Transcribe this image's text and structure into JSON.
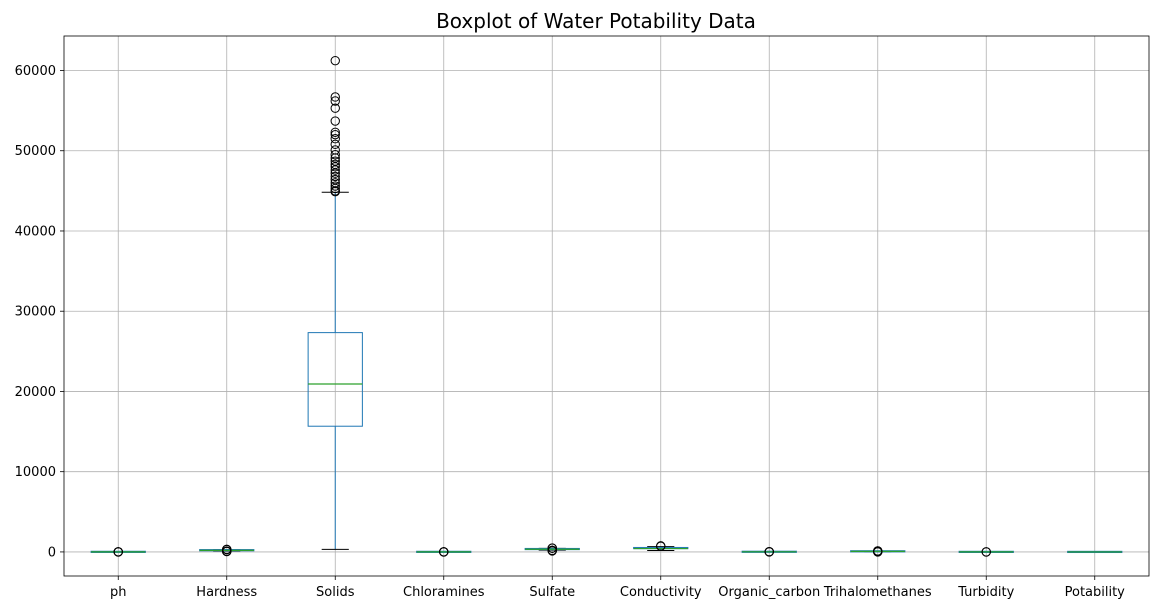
{
  "chart_data": {
    "type": "boxplot",
    "title": "Boxplot of Water Potability Data",
    "xlabel": "",
    "ylabel": "",
    "ylim": [
      -3000,
      64300
    ],
    "yticks": [
      0,
      10000,
      20000,
      30000,
      40000,
      50000,
      60000
    ],
    "ytick_labels": [
      "0",
      "10000",
      "20000",
      "30000",
      "40000",
      "50000",
      "60000"
    ],
    "grid": true,
    "colors": {
      "box": "#1f77b4",
      "median": "#2ca02c",
      "whisker_cap": "#000000",
      "grid": "#b0b0b0"
    },
    "categories": [
      "ph",
      "Hardness",
      "Solids",
      "Chloramines",
      "Sulfate",
      "Conductivity",
      "Organic_carbon",
      "Trihalomethanes",
      "Turbidity",
      "Potability"
    ],
    "boxes": [
      {
        "name": "ph",
        "whisker_low": 0,
        "q1": 6,
        "median": 7,
        "q3": 8,
        "whisker_high": 11,
        "outliers": [
          0,
          2,
          12,
          14
        ]
      },
      {
        "name": "Hardness",
        "whisker_low": 118,
        "q1": 177,
        "median": 197,
        "q3": 217,
        "whisker_high": 276,
        "outliers": [
          47,
          73,
          100,
          300,
          323
        ]
      },
      {
        "name": "Solids",
        "whisker_low": 321,
        "q1": 15667,
        "median": 20927,
        "q3": 27332,
        "whisker_high": 44832,
        "outliers": [
          44900,
          45000,
          45300,
          45600,
          46000,
          46400,
          46800,
          47200,
          47600,
          48000,
          48300,
          48700,
          49100,
          49500,
          50100,
          50800,
          51500,
          52000,
          52300,
          53700,
          55300,
          56200,
          56700,
          61227
        ]
      },
      {
        "name": "Chloramines",
        "whisker_low": 3,
        "q1": 6,
        "median": 7,
        "q3": 8,
        "whisker_high": 11,
        "outliers": [
          0,
          1,
          12,
          13
        ]
      },
      {
        "name": "Sulfate",
        "whisker_low": 230,
        "q1": 307,
        "median": 333,
        "q3": 360,
        "whisker_high": 438,
        "outliers": [
          129,
          180,
          200,
          460,
          481
        ]
      },
      {
        "name": "Conductivity",
        "whisker_low": 181,
        "q1": 366,
        "median": 422,
        "q3": 482,
        "whisker_high": 656,
        "outliers": [
          700,
          753
        ]
      },
      {
        "name": "Organic_carbon",
        "whisker_low": 5,
        "q1": 12,
        "median": 14,
        "q3": 17,
        "whisker_high": 23,
        "outliers": [
          2,
          25,
          28
        ]
      },
      {
        "name": "Trihalomethanes",
        "whisker_low": 24,
        "q1": 56,
        "median": 66,
        "q3": 77,
        "whisker_high": 108,
        "outliers": [
          1,
          10,
          115,
          124
        ]
      },
      {
        "name": "Turbidity",
        "whisker_low": 2,
        "q1": 3,
        "median": 4,
        "q3": 5,
        "whisker_high": 6,
        "outliers": [
          1,
          7
        ]
      },
      {
        "name": "Potability",
        "whisker_low": 0,
        "q1": 0,
        "median": 0,
        "q3": 1,
        "whisker_high": 1,
        "outliers": []
      }
    ]
  }
}
